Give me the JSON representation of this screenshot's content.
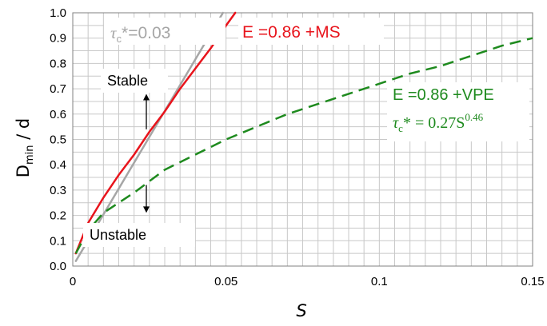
{
  "chart_data": {
    "type": "line",
    "xlabel": "S",
    "ylabel_main": "D",
    "ylabel_sub": "min",
    "ylabel_tail": " / d",
    "xlim": [
      0,
      0.15
    ],
    "ylim": [
      0,
      1.0
    ],
    "x_ticks": [
      {
        "value": 0,
        "label": "0"
      },
      {
        "value": 0.05,
        "label": "0.05"
      },
      {
        "value": 0.1,
        "label": "0.1"
      },
      {
        "value": 0.15,
        "label": "0.15"
      }
    ],
    "y_ticks": [
      {
        "value": 0.0,
        "label": "0.0"
      },
      {
        "value": 0.1,
        "label": "0.1"
      },
      {
        "value": 0.2,
        "label": "0.2"
      },
      {
        "value": 0.3,
        "label": "0.3"
      },
      {
        "value": 0.4,
        "label": "0.4"
      },
      {
        "value": 0.5,
        "label": "0.5"
      },
      {
        "value": 0.6,
        "label": "0.6"
      },
      {
        "value": 0.7,
        "label": "0.7"
      },
      {
        "value": 0.8,
        "label": "0.8"
      },
      {
        "value": 0.9,
        "label": "0.9"
      },
      {
        "value": 1.0,
        "label": "1.0"
      }
    ],
    "grid": true,
    "series": [
      {
        "name": "τc* = 0.03",
        "color": "#a6a6a6",
        "dash": "solid",
        "x": [
          0.001,
          0.049
        ],
        "y": [
          0.02,
          1.0
        ]
      },
      {
        "name": "E = 0.86 + MS",
        "color": "#e8141c",
        "dash": "solid",
        "x": [
          0.001,
          0.005,
          0.01,
          0.015,
          0.02,
          0.025,
          0.03,
          0.035,
          0.04,
          0.045,
          0.05,
          0.053
        ],
        "y": [
          0.05,
          0.17,
          0.27,
          0.36,
          0.44,
          0.53,
          0.61,
          0.7,
          0.78,
          0.86,
          0.95,
          1.0
        ]
      },
      {
        "name": "E = 0.86 + VPE",
        "color": "#1e8a1e",
        "dash": "dashed",
        "x": [
          0.001,
          0.005,
          0.01,
          0.02,
          0.03,
          0.04,
          0.05,
          0.06,
          0.07,
          0.08,
          0.09,
          0.1,
          0.11,
          0.12,
          0.13,
          0.14,
          0.15
        ],
        "y": [
          0.05,
          0.14,
          0.21,
          0.29,
          0.38,
          0.44,
          0.5,
          0.55,
          0.6,
          0.64,
          0.68,
          0.72,
          0.76,
          0.79,
          0.83,
          0.87,
          0.9
        ]
      }
    ],
    "annotations": {
      "gray_label_main": "τ",
      "gray_label_sub": "c",
      "gray_label_tail": "*=0.03",
      "red_label": "E =0.86 +MS",
      "green_label_1": "E =0.86 +VPE",
      "green_label_2_main": "τ",
      "green_label_2_sub": "c",
      "green_label_2_mid": "* = 0.27S",
      "green_label_2_sup": "0.46",
      "stable": "Stable",
      "unstable": "Unstable"
    },
    "arrows": [
      {
        "x": 0.024,
        "y_from": 0.54,
        "y_to": 0.68
      },
      {
        "x": 0.024,
        "y_from": 0.32,
        "y_to": 0.21
      }
    ]
  }
}
